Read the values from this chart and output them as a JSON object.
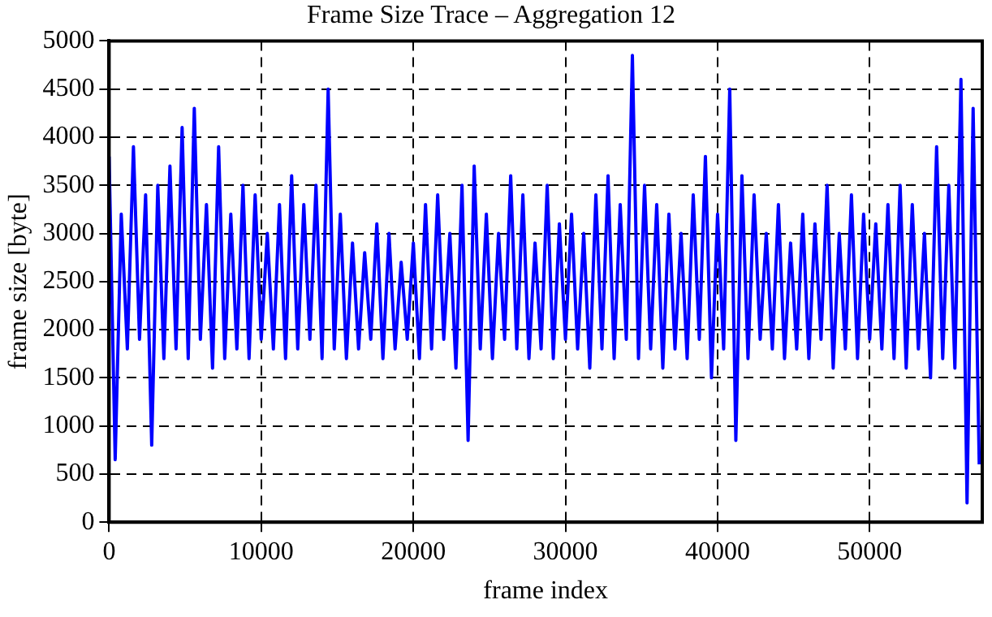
{
  "chart_data": {
    "type": "line",
    "title": "Frame Size Trace – Aggregation 12",
    "xlabel": "frame index",
    "ylabel": "frame size [byte]",
    "x": [
      0,
      400,
      800,
      1200,
      1600,
      2000,
      2400,
      2800,
      3200,
      3600,
      4000,
      4400,
      4800,
      5200,
      5600,
      6000,
      6400,
      6800,
      7200,
      7600,
      8000,
      8400,
      8800,
      9200,
      9600,
      10000,
      10400,
      10800,
      11200,
      11600,
      12000,
      12400,
      12800,
      13200,
      13600,
      14000,
      14400,
      14800,
      15200,
      15600,
      16000,
      16400,
      16800,
      17200,
      17600,
      18000,
      18400,
      18800,
      19200,
      19600,
      20000,
      20400,
      20800,
      21200,
      21600,
      22000,
      22400,
      22800,
      23200,
      23600,
      24000,
      24400,
      24800,
      25200,
      25600,
      26000,
      26400,
      26800,
      27200,
      27600,
      28000,
      28400,
      28800,
      29200,
      29600,
      30000,
      30400,
      30800,
      31200,
      31600,
      32000,
      32400,
      32800,
      33200,
      33600,
      34000,
      34400,
      34800,
      35200,
      35600,
      36000,
      36400,
      36800,
      37200,
      37600,
      38000,
      38400,
      38800,
      39200,
      39600,
      40000,
      40400,
      40800,
      41200,
      41600,
      42000,
      42400,
      42800,
      43200,
      43600,
      44000,
      44400,
      44800,
      45200,
      45600,
      46000,
      46400,
      46800,
      47200,
      47600,
      48000,
      48400,
      48800,
      49200,
      49600,
      50000,
      50400,
      50800,
      51200,
      51600,
      52000,
      52400,
      52800,
      53200,
      53600,
      54000,
      54400,
      54800,
      55200,
      55600,
      56000,
      56400,
      56800,
      57200
    ],
    "series": [
      {
        "color": "#0000ff",
        "values": [
          3800,
          650,
          3200,
          1800,
          3900,
          1900,
          3400,
          800,
          3500,
          1700,
          3700,
          1800,
          4100,
          1700,
          4300,
          1900,
          3300,
          1600,
          3900,
          1700,
          3200,
          1800,
          3500,
          1700,
          3400,
          1900,
          3000,
          1800,
          3300,
          1700,
          3600,
          1800,
          3300,
          1900,
          3500,
          1700,
          4500,
          1800,
          3200,
          1700,
          2900,
          1800,
          2800,
          1900,
          3100,
          1700,
          3000,
          1800,
          2700,
          1900,
          2900,
          1700,
          3300,
          1800,
          3400,
          1900,
          3000,
          1600,
          3500,
          850,
          3700,
          1800,
          3200,
          1700,
          3000,
          1900,
          3600,
          1800,
          3400,
          1700,
          2900,
          1800,
          3500,
          1700,
          3100,
          1900,
          3200,
          1800,
          3000,
          1600,
          3400,
          1800,
          3600,
          1700,
          3300,
          1900,
          4850,
          1700,
          3500,
          1800,
          3300,
          1600,
          3200,
          1800,
          3000,
          1700,
          3400,
          1900,
          3800,
          1500,
          3200,
          1800,
          4500,
          850,
          3600,
          1700,
          3400,
          1900,
          3000,
          1800,
          3300,
          1700,
          2900,
          1800,
          3200,
          1700,
          3100,
          1900,
          3500,
          1600,
          3000,
          1800,
          3400,
          1700,
          3200,
          1900,
          3100,
          1800,
          3300,
          1700,
          3500,
          1600,
          3300,
          1800,
          3000,
          1500,
          3900,
          1700,
          3500,
          1600,
          4600,
          200,
          4300,
          600
        ]
      }
    ],
    "xlim": [
      0,
      57400
    ],
    "xticks": [
      0,
      10000,
      20000,
      30000,
      40000,
      50000
    ],
    "ylim": [
      0,
      5000
    ],
    "yticks": [
      0,
      500,
      1000,
      1500,
      2000,
      2500,
      3000,
      3500,
      4000,
      4500,
      5000
    ],
    "grid": true,
    "legend": false,
    "marker": "none",
    "line_style": "solid"
  }
}
